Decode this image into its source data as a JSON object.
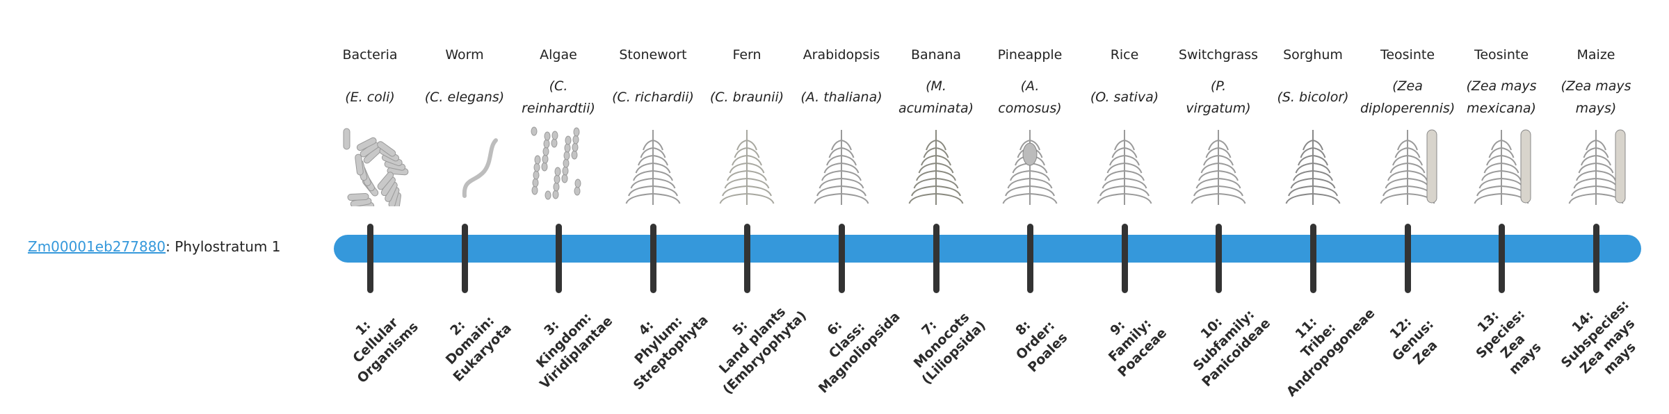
{
  "gene": {
    "id": "Zm00001eb277880",
    "suffix": ": Phylostratum 1"
  },
  "colors": {
    "bar": "#3598db",
    "tick": "#333333",
    "link": "#3498db"
  },
  "strata": [
    {
      "common": "Bacteria",
      "scientific": [
        "(E. coli)"
      ],
      "icon": "bacteria-icon",
      "level": [
        "1:",
        "Cellular",
        "Organisms"
      ]
    },
    {
      "common": "Worm",
      "scientific": [
        "(C. elegans)"
      ],
      "icon": "worm-icon",
      "level": [
        "2:",
        "Domain:",
        "Eukaryota"
      ]
    },
    {
      "common": "Algae",
      "scientific": [
        "(C.",
        "reinhardtii)"
      ],
      "icon": "algae-icon",
      "level": [
        "3:",
        "Kingdom:",
        "Viridiplantae"
      ]
    },
    {
      "common": "Stonewort",
      "scientific": [
        "(C. richardii)"
      ],
      "icon": "stonewort-icon",
      "level": [
        "4:",
        "Phylum:",
        "Streptophyta"
      ]
    },
    {
      "common": "Fern",
      "scientific": [
        "(C. braunii)"
      ],
      "icon": "fern-icon",
      "level": [
        "5:",
        "Land plants",
        "(Embryophyta)"
      ]
    },
    {
      "common": "Arabidopsis",
      "scientific": [
        "(A. thaliana)"
      ],
      "icon": "arabidopsis-icon",
      "level": [
        "6:",
        "Class:",
        "Magnoliopsida"
      ]
    },
    {
      "common": "Banana",
      "scientific": [
        "(M.",
        "acuminata)"
      ],
      "icon": "banana-icon",
      "level": [
        "7:",
        "Monocots",
        "(Liliopsida)"
      ]
    },
    {
      "common": "Pineapple",
      "scientific": [
        "(A.",
        "comosus)"
      ],
      "icon": "pineapple-icon",
      "level": [
        "8:",
        "Order:",
        "Poales"
      ]
    },
    {
      "common": "Rice",
      "scientific": [
        "(O. sativa)"
      ],
      "icon": "rice-icon",
      "level": [
        "9:",
        "Family:",
        "Poaceae"
      ]
    },
    {
      "common": "Switchgrass",
      "scientific": [
        "(P.",
        "virgatum)"
      ],
      "icon": "switchgrass-icon",
      "level": [
        "10:",
        "Subfamily:",
        "Panicoideae"
      ]
    },
    {
      "common": "Sorghum",
      "scientific": [
        "(S. bicolor)"
      ],
      "icon": "sorghum-icon",
      "level": [
        "11:",
        "Tribe:",
        "Andropogoneae"
      ]
    },
    {
      "common": "Teosinte",
      "scientific": [
        "(Zea",
        "diploperennis)"
      ],
      "icon": "teosinte-icon",
      "level": [
        "12:",
        "Genus:",
        "Zea"
      ]
    },
    {
      "common": "Teosinte",
      "scientific": [
        "(Zea mays",
        "mexicana)"
      ],
      "icon": "teosinte-mexicana-icon",
      "level": [
        "13:",
        "Species:",
        "Zea",
        "mays"
      ]
    },
    {
      "common": "Maize",
      "scientific": [
        "(Zea mays",
        "mays)"
      ],
      "icon": "maize-icon",
      "level": [
        "14:",
        "Subspecies:",
        "Zea mays",
        "mays"
      ]
    }
  ]
}
